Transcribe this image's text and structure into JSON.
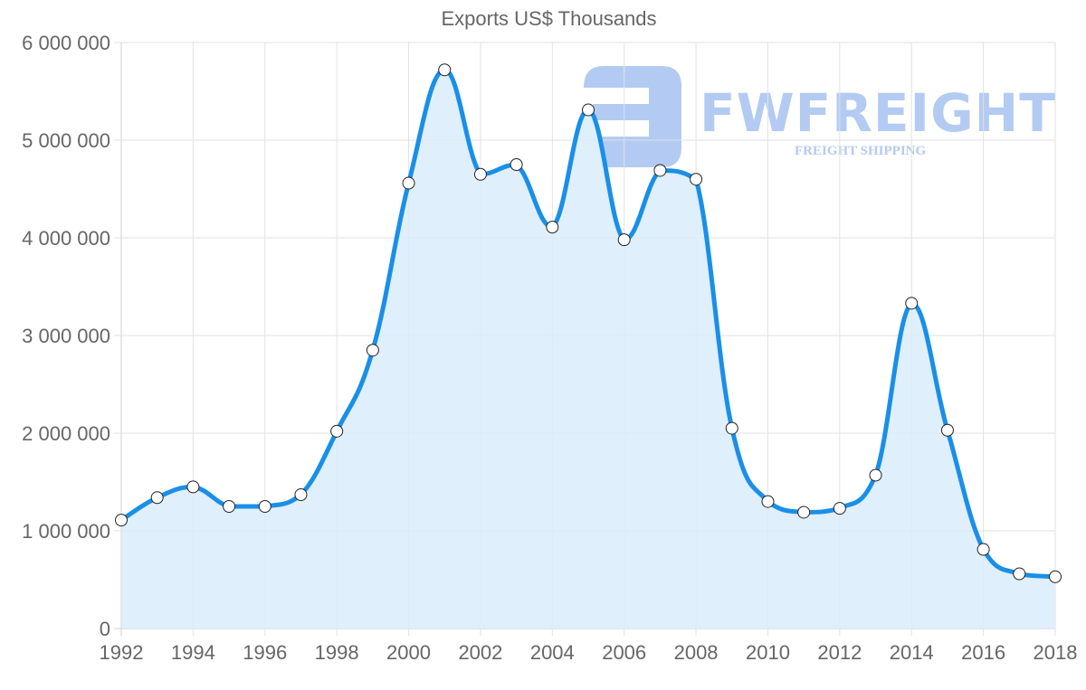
{
  "title": "Exports US$ Thousands",
  "watermark": {
    "brand": "FWFREIGHT",
    "tagline": "FREIGHT SHIPPING",
    "color": "#b3cbf2"
  },
  "colors": {
    "line": "#1a8fe8",
    "fill": "#d9ecfc",
    "grid": "#e2e2e2",
    "axis_text": "#666666",
    "point_fill": "#ffffff",
    "point_stroke": "#222222"
  },
  "chart_data": {
    "type": "area",
    "title": "Exports US$ Thousands",
    "xlabel": "",
    "ylabel": "",
    "ylim": [
      0,
      6000000
    ],
    "yticks": [
      0,
      1000000,
      2000000,
      3000000,
      4000000,
      5000000,
      6000000
    ],
    "ytick_labels": [
      "0",
      "1 000 000",
      "2 000 000",
      "3 000 000",
      "4 000 000",
      "5 000 000",
      "6 000 000"
    ],
    "xtick_labels": [
      "1992",
      "1994",
      "1996",
      "1998",
      "2000",
      "2002",
      "2004",
      "2006",
      "2008",
      "2010",
      "2012",
      "2014",
      "2016",
      "2018"
    ],
    "grid": true,
    "legend": null,
    "x": [
      1992,
      1993,
      1994,
      1995,
      1996,
      1997,
      1998,
      1999,
      2000,
      2001,
      2002,
      2003,
      2004,
      2005,
      2006,
      2007,
      2008,
      2009,
      2010,
      2011,
      2012,
      2013,
      2014,
      2015,
      2016,
      2017,
      2018
    ],
    "series": [
      {
        "name": "Exports US$ Thousands",
        "values": [
          1110000,
          1340000,
          1450000,
          1250000,
          1250000,
          1370000,
          2020000,
          2850000,
          4560000,
          5720000,
          4650000,
          4750000,
          4110000,
          5310000,
          3980000,
          4690000,
          4600000,
          2050000,
          1300000,
          1190000,
          1230000,
          1570000,
          3330000,
          2030000,
          810000,
          560000,
          530000
        ]
      }
    ]
  }
}
